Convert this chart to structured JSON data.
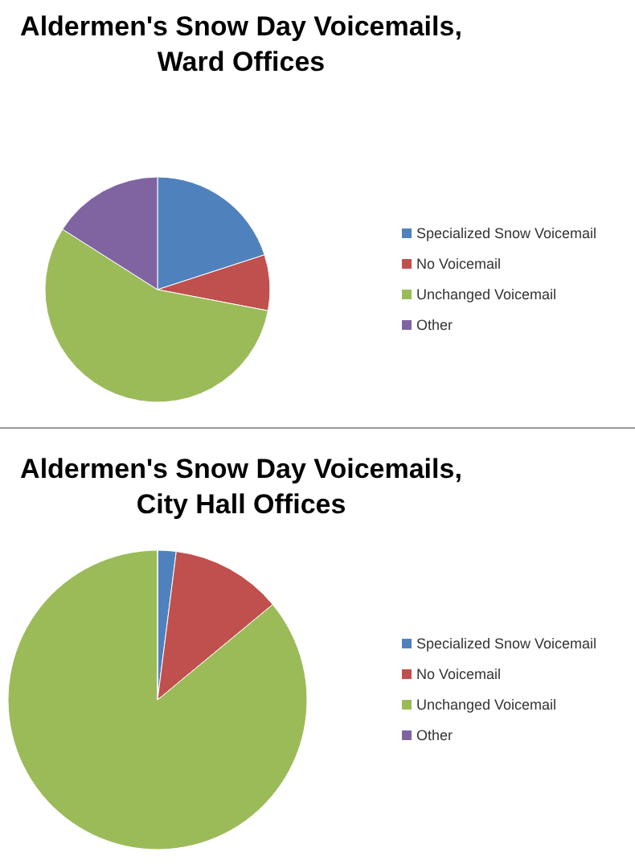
{
  "chart_data": [
    {
      "type": "pie",
      "title": "Aldermen's Snow Day Voicemails, Ward Offices",
      "categories": [
        "Specialized Snow Voicemail",
        "No Voicemail",
        "Unchanged Voicemail",
        "Other"
      ],
      "values": [
        20,
        8,
        56,
        16
      ],
      "colors": [
        "#4f81bd",
        "#c0504d",
        "#9bbb59",
        "#8064a2"
      ],
      "legend": "right"
    },
    {
      "type": "pie",
      "title": "Aldermen's Snow Day Voicemails, City Hall Offices",
      "categories": [
        "Specialized Snow Voicemail",
        "No Voicemail",
        "Unchanged Voicemail",
        "Other"
      ],
      "values": [
        2,
        12,
        86,
        0
      ],
      "colors": [
        "#4f81bd",
        "#c0504d",
        "#9bbb59",
        "#8064a2"
      ],
      "legend": "right"
    }
  ]
}
